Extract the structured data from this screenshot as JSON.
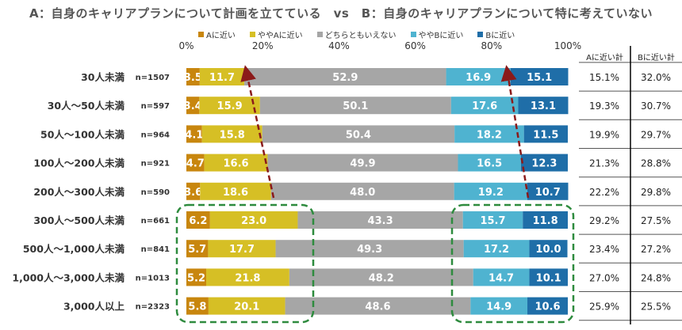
{
  "chart_data": {
    "type": "bar",
    "orientation": "horizontal-stacked-100",
    "title": "A：自身のキャリアプランについて計画を立てている　vs　B：自身のキャリアプランについて特に考えていない",
    "series_names": [
      "Aに近い",
      "ややAに近い",
      "どちらともいえない",
      "ややBに近い",
      "Bに近い"
    ],
    "colors": [
      "#c8860e",
      "#d6bf25",
      "#a6a6a6",
      "#4fb3d0",
      "#1f6ea8"
    ],
    "x_ticks": [
      "0%",
      "20%",
      "40%",
      "60%",
      "80%",
      "100%"
    ],
    "xlim": [
      0,
      100
    ],
    "categories": [
      "30人未満",
      "30人～50人未満",
      "50人～100人未満",
      "100人～200人未満",
      "200人～300人未満",
      "300人～500人未満",
      "500人～1,000人未満",
      "1,000人～3,000人未満",
      "3,000人以上"
    ],
    "n": [
      "n=1507",
      "n=597",
      "n=964",
      "n=921",
      "n=590",
      "n=661",
      "n=841",
      "n=1013",
      "n=2323"
    ],
    "values": [
      [
        3.5,
        11.7,
        52.9,
        16.9,
        15.1
      ],
      [
        3.4,
        15.9,
        50.1,
        17.6,
        13.1
      ],
      [
        4.1,
        15.8,
        50.4,
        18.2,
        11.5
      ],
      [
        4.7,
        16.6,
        49.9,
        16.5,
        12.3
      ],
      [
        3.6,
        18.6,
        48.0,
        19.2,
        10.7
      ],
      [
        6.2,
        23.0,
        43.3,
        15.7,
        11.8
      ],
      [
        5.7,
        17.7,
        49.3,
        17.2,
        10.0
      ],
      [
        5.2,
        21.8,
        48.2,
        14.7,
        10.1
      ],
      [
        5.8,
        20.1,
        48.6,
        14.9,
        10.6
      ]
    ],
    "table": {
      "headers": [
        "Aに近い計",
        "Bに近い計"
      ],
      "rows": [
        [
          "15.1%",
          "32.0%"
        ],
        [
          "19.3%",
          "30.7%"
        ],
        [
          "19.9%",
          "29.7%"
        ],
        [
          "21.3%",
          "28.8%"
        ],
        [
          "22.2%",
          "29.8%"
        ],
        [
          "29.2%",
          "27.5%"
        ],
        [
          "23.4%",
          "27.2%"
        ],
        [
          "27.0%",
          "24.8%"
        ],
        [
          "25.9%",
          "25.5%"
        ]
      ]
    },
    "annotation_colors": {
      "arrow": "#8b1a1a",
      "highlight": "#2e8b3e"
    }
  }
}
